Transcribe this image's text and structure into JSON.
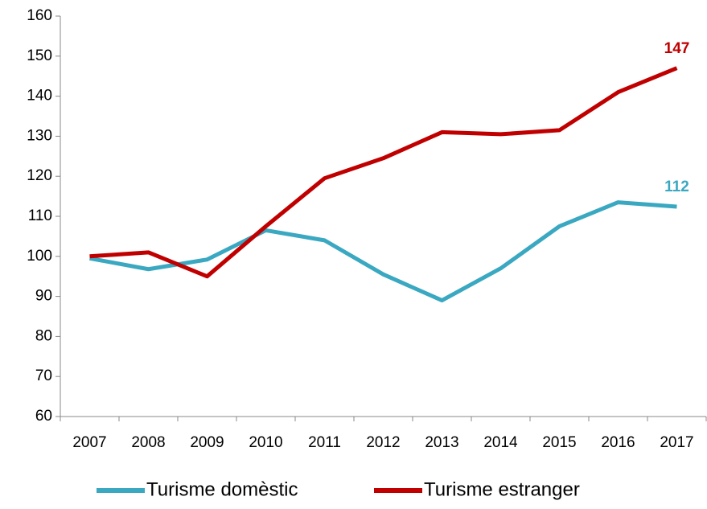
{
  "chart_data": {
    "type": "line",
    "categories": [
      "2007",
      "2008",
      "2009",
      "2010",
      "2011",
      "2012",
      "2013",
      "2014",
      "2015",
      "2016",
      "2017"
    ],
    "series": [
      {
        "name": "Turisme domèstic",
        "color": "#3aa8c1",
        "values": [
          99.5,
          96.8,
          99.2,
          106.5,
          104,
          95.5,
          89,
          97,
          107.5,
          113.5,
          112.4
        ],
        "value_labels": [
          null,
          null,
          null,
          null,
          null,
          null,
          null,
          null,
          null,
          null,
          "112"
        ]
      },
      {
        "name": "Turisme estranger",
        "color": "#c00000",
        "values": [
          100,
          101,
          95,
          107.5,
          119.5,
          124.5,
          131,
          130.5,
          131.5,
          141,
          147
        ],
        "value_labels": [
          null,
          null,
          null,
          null,
          null,
          null,
          null,
          null,
          null,
          null,
          "147"
        ]
      }
    ],
    "ylim": [
      60,
      160
    ],
    "yticks": [
      60,
      70,
      80,
      90,
      100,
      110,
      120,
      130,
      140,
      150,
      160
    ],
    "legend": "bottom"
  }
}
